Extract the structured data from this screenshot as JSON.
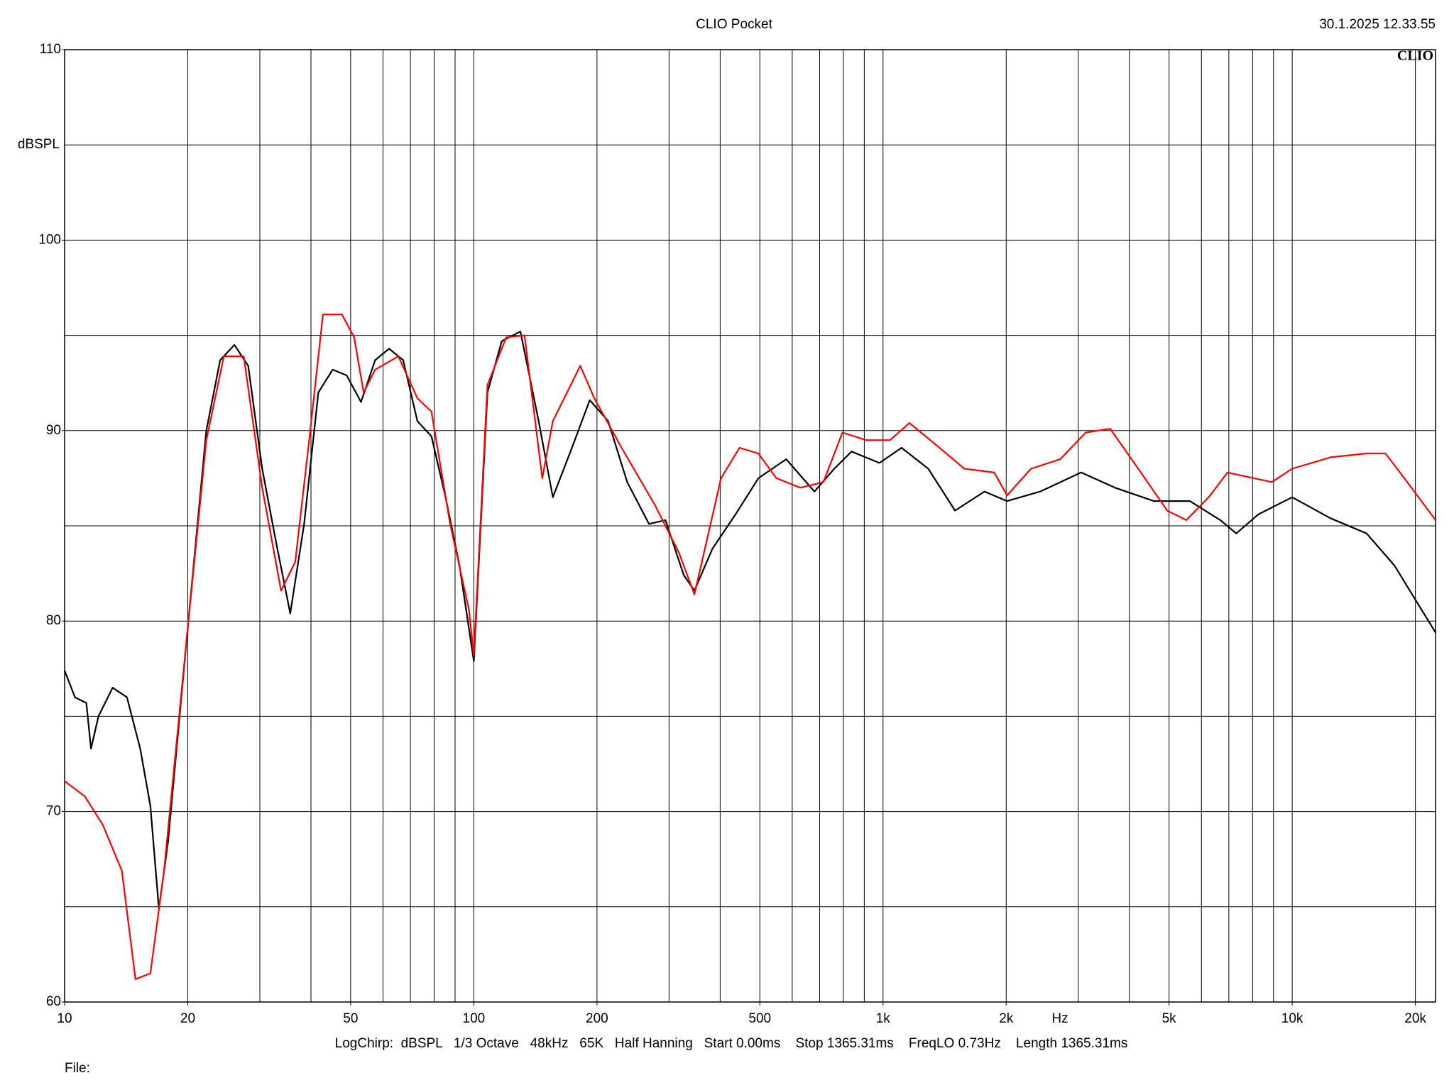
{
  "chart_data": {
    "type": "line",
    "title": "CLIO Pocket",
    "timestamp": "30.1.2025 12.33.55",
    "logo": "CLIO",
    "y_label": "dBSPL",
    "x_label": "Hz",
    "footer": "LogChirp:  dBSPL   1/3 Octave   48kHz   65K   Half Hanning   Start 0.00ms    Stop 1365.31ms    FreqLO 0.73Hz    Length 1365.31ms",
    "file_label": "File:",
    "xlog": true,
    "xlim": [
      10,
      22400
    ],
    "ylim": [
      60,
      110
    ],
    "yticks": [
      60,
      70,
      80,
      90,
      100,
      110
    ],
    "ygrid": [
      60,
      65,
      70,
      75,
      80,
      85,
      90,
      95,
      100,
      105,
      110
    ],
    "xticks": [
      10,
      20,
      50,
      100,
      200,
      500,
      {
        "value": 1000,
        "label": "1k"
      },
      {
        "value": 2000,
        "label": "2k"
      },
      {
        "value": 5000,
        "label": "5k"
      },
      {
        "value": 10000,
        "label": "10k"
      },
      {
        "value": 20000,
        "label": "20k"
      }
    ],
    "xgrid": [
      10,
      20,
      30,
      40,
      50,
      60,
      70,
      80,
      90,
      100,
      200,
      300,
      400,
      500,
      600,
      700,
      800,
      900,
      1000,
      2000,
      3000,
      4000,
      5000,
      6000,
      7000,
      8000,
      9000,
      10000,
      20000
    ],
    "grid": true,
    "series": [
      {
        "color": "#000000",
        "x": [
          10,
          10.6,
          11.3,
          11.6,
          12.1,
          13.1,
          14.2,
          15.3,
          16.2,
          17.0,
          17.9,
          19.9,
          22.2,
          24.0,
          26.0,
          28.1,
          30.4,
          32.9,
          35.6,
          38.5,
          41.7,
          45.2,
          48.9,
          53.0,
          57.4,
          62.1,
          67.2,
          72.8,
          78.8,
          85.3,
          92.3,
          100,
          108,
          117,
          130,
          144,
          156,
          173,
          192,
          213,
          237,
          268,
          294,
          326,
          346,
          383,
          436,
          496,
          580,
          680,
          760,
          838,
          980,
          1110,
          1290,
          1500,
          1770,
          2010,
          2420,
          3050,
          3690,
          4590,
          5620,
          6670,
          7300,
          8260,
          10000,
          12400,
          15200,
          17800,
          20700,
          22400
        ],
        "values": [
          77.4,
          76.0,
          75.7,
          73.3,
          75.0,
          76.5,
          76.0,
          73.3,
          70.3,
          64.9,
          68.4,
          79.2,
          90.0,
          93.7,
          94.5,
          93.4,
          88.0,
          84.1,
          80.4,
          85.1,
          92.0,
          93.2,
          92.9,
          91.5,
          93.7,
          94.3,
          93.7,
          90.5,
          89.7,
          86.5,
          82.9,
          77.9,
          92.0,
          94.7,
          95.2,
          90.5,
          86.5,
          89.0,
          91.6,
          90.5,
          87.3,
          85.1,
          85.3,
          82.4,
          81.6,
          83.8,
          85.6,
          87.5,
          88.5,
          86.8,
          88.0,
          88.9,
          88.3,
          89.1,
          88.0,
          85.8,
          86.8,
          86.3,
          86.8,
          87.8,
          87.0,
          86.3,
          86.3,
          85.3,
          84.6,
          85.6,
          86.5,
          85.4,
          84.6,
          82.9,
          80.6,
          79.4
        ]
      },
      {
        "color": "#ff0000",
        "x": [
          10,
          11.2,
          12.4,
          13.8,
          14.9,
          16.2,
          17.5,
          19.9,
          22.2,
          24.5,
          27.4,
          30.4,
          33.8,
          36.6,
          39.6,
          42.8,
          47.6,
          51.0,
          53.8,
          57.4,
          65.4,
          72.8,
          78.8,
          87.5,
          97.3,
          100,
          108,
          120,
          133,
          147,
          156,
          182,
          197,
          231,
          277,
          317,
          346,
          402,
          446,
          496,
          549,
          628,
          715,
          796,
          910,
          1040,
          1160,
          1340,
          1580,
          1870,
          2010,
          2300,
          2710,
          3130,
          3590,
          4110,
          4950,
          5510,
          6250,
          6950,
          8060,
          8920,
          10000,
          12400,
          15200,
          16900,
          18800,
          22400
        ],
        "values": [
          71.6,
          70.8,
          69.3,
          66.9,
          61.2,
          61.5,
          66.9,
          79.2,
          89.5,
          93.9,
          93.9,
          87.0,
          81.6,
          83.1,
          89.5,
          96.1,
          96.1,
          94.9,
          92.0,
          93.2,
          93.9,
          91.7,
          91.0,
          85.1,
          80.6,
          78.2,
          92.4,
          94.9,
          95.0,
          87.5,
          90.5,
          93.4,
          91.7,
          89.0,
          86.1,
          83.6,
          81.4,
          87.5,
          89.1,
          88.8,
          87.5,
          87.0,
          87.3,
          89.9,
          89.5,
          89.5,
          90.4,
          89.3,
          88.0,
          87.8,
          86.6,
          88.0,
          88.5,
          89.9,
          90.1,
          88.3,
          85.8,
          85.3,
          86.5,
          87.8,
          87.5,
          87.3,
          88.0,
          88.6,
          88.8,
          88.8,
          87.5,
          85.3
        ]
      }
    ]
  }
}
